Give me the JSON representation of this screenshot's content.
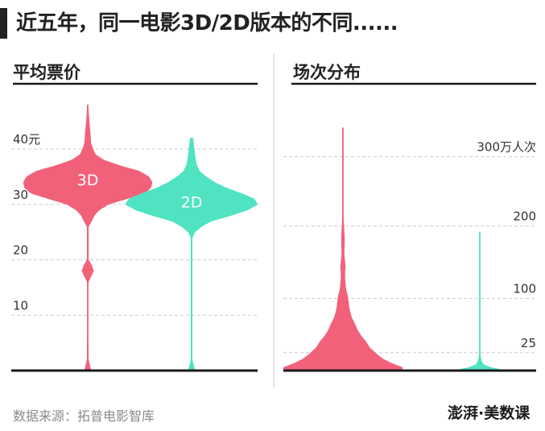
{
  "title": "近五年，同一电影3D/2D版本的不同......",
  "source": "数据来源：拓普电影智库",
  "logo": "澎湃·美数课",
  "colors": {
    "3D": "#f2617a",
    "2D": "#4fe3c2",
    "axis": "#1a1a1a",
    "grid": "#cccccc",
    "divider": "#cccccc"
  },
  "chart_data": [
    {
      "type": "violin",
      "title": "平均票价",
      "ylim": [
        0,
        48
      ],
      "yticks": [
        {
          "value": 40,
          "label": "40元"
        },
        {
          "value": 30,
          "label": "30"
        },
        {
          "value": 20,
          "label": "20"
        },
        {
          "value": 10,
          "label": "10"
        }
      ],
      "series": [
        {
          "name": "3D",
          "label": "3D",
          "color": "#f2617a",
          "label_at": 34.5,
          "profile": [
            [
              0,
              0.05
            ],
            [
              2,
              0.01
            ],
            [
              5,
              0.008
            ],
            [
              12,
              0.008
            ],
            [
              16,
              0.008
            ],
            [
              17,
              0.05
            ],
            [
              18,
              0.09
            ],
            [
              19,
              0.06
            ],
            [
              20,
              0.01
            ],
            [
              26,
              0.01
            ],
            [
              27,
              0.06
            ],
            [
              28,
              0.1
            ],
            [
              29,
              0.18
            ],
            [
              30,
              0.32
            ],
            [
              31,
              0.6
            ],
            [
              32,
              0.88
            ],
            [
              33,
              0.98
            ],
            [
              34,
              1.0
            ],
            [
              35,
              0.95
            ],
            [
              36,
              0.8
            ],
            [
              37,
              0.5
            ],
            [
              38,
              0.25
            ],
            [
              39,
              0.12
            ],
            [
              40,
              0.08
            ],
            [
              41,
              0.05
            ],
            [
              44,
              0.03
            ],
            [
              46,
              0.015
            ],
            [
              48,
              0.005
            ]
          ]
        },
        {
          "name": "2D",
          "label": "2D",
          "color": "#4fe3c2",
          "label_at": 30.5,
          "profile": [
            [
              0,
              0.05
            ],
            [
              2,
              0.008
            ],
            [
              20,
              0.008
            ],
            [
              24,
              0.008
            ],
            [
              25,
              0.05
            ],
            [
              26,
              0.15
            ],
            [
              27,
              0.3
            ],
            [
              28,
              0.6
            ],
            [
              29,
              0.85
            ],
            [
              30,
              1.0
            ],
            [
              31,
              0.95
            ],
            [
              32,
              0.75
            ],
            [
              33,
              0.52
            ],
            [
              34,
              0.35
            ],
            [
              35,
              0.22
            ],
            [
              36,
              0.12
            ],
            [
              37,
              0.08
            ],
            [
              38,
              0.06
            ],
            [
              40,
              0.04
            ],
            [
              41,
              0.03
            ],
            [
              42,
              0.02
            ]
          ]
        }
      ]
    },
    {
      "type": "violin",
      "title": "场次分布",
      "ylim": [
        0,
        460
      ],
      "yticks": [
        {
          "value": 370,
          "label": "300万人次"
        },
        {
          "value": 250,
          "label": "200"
        },
        {
          "value": 125,
          "label": "100"
        },
        {
          "value": 31,
          "label": "25"
        }
      ],
      "series": [
        {
          "name": "3D",
          "color": "#f2617a",
          "profile": [
            [
              0,
              0.95
            ],
            [
              5,
              1.0
            ],
            [
              12,
              0.82
            ],
            [
              20,
              0.66
            ],
            [
              30,
              0.54
            ],
            [
              40,
              0.44
            ],
            [
              50,
              0.38
            ],
            [
              60,
              0.3
            ],
            [
              70,
              0.24
            ],
            [
              80,
              0.2
            ],
            [
              90,
              0.15
            ],
            [
              100,
              0.12
            ],
            [
              110,
              0.1
            ],
            [
              120,
              0.09
            ],
            [
              130,
              0.075
            ],
            [
              140,
              0.05
            ],
            [
              150,
              0.04
            ],
            [
              160,
              0.032
            ],
            [
              170,
              0.032
            ],
            [
              180,
              0.04
            ],
            [
              190,
              0.03
            ],
            [
              200,
              0.02
            ],
            [
              210,
              0.02
            ],
            [
              220,
              0.025
            ],
            [
              230,
              0.025
            ],
            [
              240,
              0.02
            ],
            [
              260,
              0.01
            ],
            [
              280,
              0.006
            ],
            [
              320,
              0.004
            ],
            [
              360,
              0.003
            ],
            [
              400,
              0.002
            ],
            [
              420,
              0.001
            ]
          ]
        },
        {
          "name": "2D",
          "color": "#4fe3c2",
          "profile": [
            [
              0,
              0.45
            ],
            [
              5,
              0.2
            ],
            [
              10,
              0.07
            ],
            [
              15,
              0.035
            ],
            [
              20,
              0.02
            ],
            [
              25,
              0.01
            ],
            [
              30,
              0.006
            ],
            [
              40,
              0.003
            ],
            [
              60,
              0.003
            ],
            [
              80,
              0.003
            ],
            [
              100,
              0.002
            ],
            [
              200,
              0.002
            ],
            [
              240,
              0.001
            ]
          ]
        }
      ]
    }
  ]
}
